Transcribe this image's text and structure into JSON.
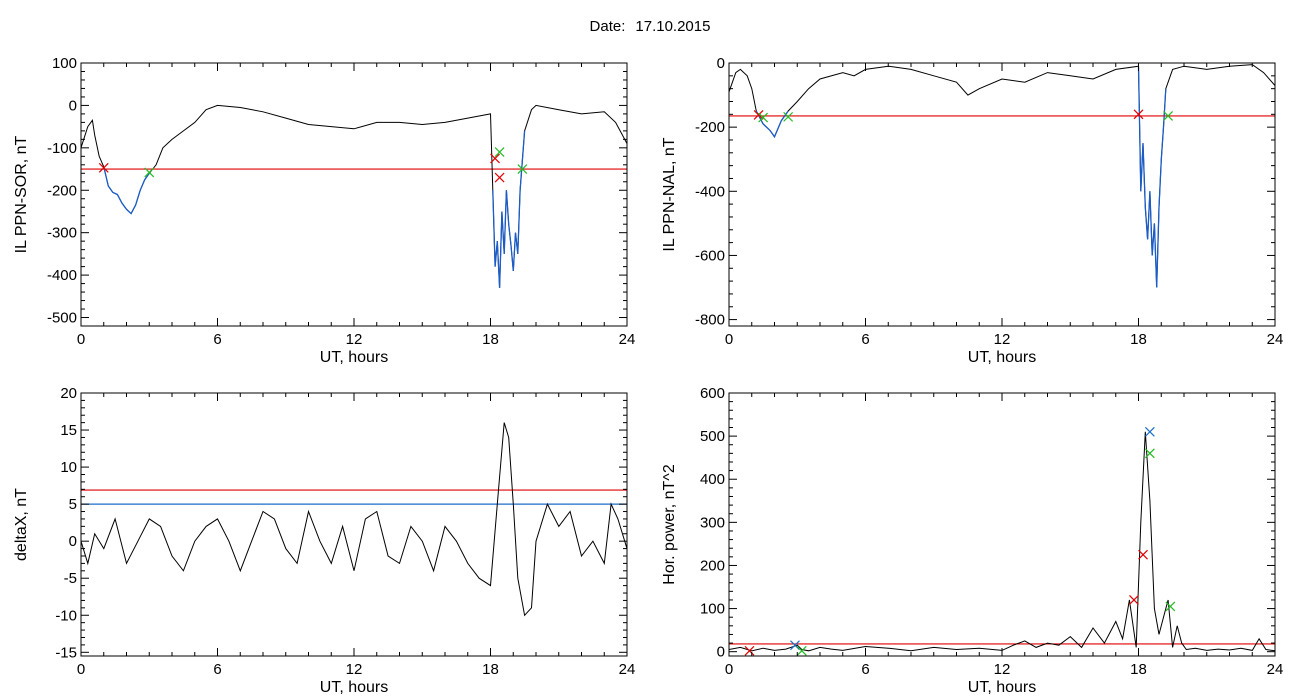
{
  "header": {
    "date_label": "Date:",
    "date_value": "17.10.2015"
  },
  "colors": {
    "trace": "#000000",
    "selected": "#1a5cc8",
    "threshold": "#e00000",
    "threshold2": "#1a6fc8",
    "marker_red": "#e00000",
    "marker_green": "#22bb22",
    "marker_blue": "#1a6fc8"
  },
  "chart_data": [
    {
      "type": "line",
      "xlabel": "UT, hours",
      "ylabel": "IL PPN-SOR, nT",
      "xlim": [
        0,
        24
      ],
      "ylim": [
        -520,
        100
      ],
      "xticks": [
        0,
        6,
        12,
        18,
        24
      ],
      "yticks": [
        -500,
        -400,
        -300,
        -200,
        -100,
        0,
        100
      ],
      "series": [
        {
          "x": [
            0,
            0.3,
            0.5,
            0.6,
            0.8,
            1.0,
            1.2,
            1.4,
            1.6,
            1.8,
            2.0,
            2.2,
            2.4,
            2.6,
            2.8,
            3.0,
            3.3,
            3.6,
            4.0,
            4.5,
            5.0,
            5.5,
            6.0,
            7.0,
            8.0,
            9.0,
            10.0,
            11.0,
            12.0,
            13.0,
            14.0,
            15.0,
            16.0,
            17.0,
            17.5,
            18.0,
            18.1,
            18.2,
            18.3,
            18.4,
            18.5,
            18.6,
            18.7,
            18.8,
            18.9,
            19.0,
            19.1,
            19.2,
            19.3,
            19.5,
            19.8,
            20.0,
            21.0,
            22.0,
            23.0,
            23.5,
            24.0
          ],
          "y": [
            -100,
            -50,
            -35,
            -70,
            -120,
            -145,
            -190,
            -205,
            -210,
            -230,
            -245,
            -255,
            -235,
            -200,
            -175,
            -160,
            -140,
            -100,
            -80,
            -60,
            -40,
            -10,
            0,
            -5,
            -15,
            -30,
            -45,
            -50,
            -55,
            -40,
            -40,
            -45,
            -40,
            -30,
            -25,
            -20,
            -200,
            -380,
            -320,
            -430,
            -250,
            -350,
            -200,
            -280,
            -330,
            -390,
            -300,
            -350,
            -200,
            -60,
            -10,
            0,
            -10,
            -20,
            -15,
            -40,
            -90
          ]
        }
      ],
      "thresholds": [
        {
          "y": -150,
          "color": "#e00000"
        }
      ],
      "highlights": [
        [
          0.9,
          3.2
        ],
        [
          18.1,
          19.7
        ]
      ],
      "markers": [
        {
          "x": 1.0,
          "y": -147,
          "color": "#e00000"
        },
        {
          "x": 3.0,
          "y": -158,
          "color": "#22bb22"
        },
        {
          "x": 18.2,
          "y": -125,
          "color": "#e00000"
        },
        {
          "x": 18.4,
          "y": -110,
          "color": "#22bb22"
        },
        {
          "x": 18.4,
          "y": -170,
          "color": "#e00000"
        },
        {
          "x": 19.4,
          "y": -150,
          "color": "#22bb22"
        }
      ]
    },
    {
      "type": "line",
      "xlabel": "UT, hours",
      "ylabel": "IL PPN-NAL, nT",
      "xlim": [
        0,
        24
      ],
      "ylim": [
        -820,
        0
      ],
      "xticks": [
        0,
        6,
        12,
        18,
        24
      ],
      "yticks": [
        -800,
        -600,
        -400,
        -200,
        0
      ],
      "series": [
        {
          "x": [
            0,
            0.3,
            0.5,
            0.8,
            1.0,
            1.2,
            1.5,
            1.8,
            2.0,
            2.3,
            2.6,
            3.0,
            3.5,
            4.0,
            5.0,
            5.5,
            6.0,
            7.0,
            8.0,
            9.0,
            10.0,
            10.5,
            11.0,
            12.0,
            13.0,
            14.0,
            15.0,
            16.0,
            17.0,
            18.0,
            18.1,
            18.2,
            18.3,
            18.4,
            18.5,
            18.6,
            18.7,
            18.8,
            18.9,
            19.0,
            19.1,
            19.2,
            19.5,
            20.0,
            21.0,
            22.0,
            23.0,
            23.5,
            24.0
          ],
          "y": [
            -90,
            -30,
            -20,
            -40,
            -80,
            -150,
            -190,
            -210,
            -230,
            -180,
            -150,
            -120,
            -80,
            -50,
            -30,
            -40,
            -20,
            -10,
            -20,
            -40,
            -60,
            -100,
            -80,
            -50,
            -60,
            -30,
            -40,
            -50,
            -20,
            -10,
            -400,
            -250,
            -450,
            -550,
            -400,
            -600,
            -500,
            -700,
            -450,
            -300,
            -200,
            -80,
            -20,
            -10,
            -20,
            -10,
            -5,
            -30,
            -70
          ]
        }
      ],
      "thresholds": [
        {
          "y": -165,
          "color": "#e00000"
        }
      ],
      "highlights": [
        [
          1.2,
          2.6
        ],
        [
          18.0,
          19.3
        ]
      ],
      "markers": [
        {
          "x": 1.3,
          "y": -162,
          "color": "#e00000"
        },
        {
          "x": 1.5,
          "y": -170,
          "color": "#22bb22"
        },
        {
          "x": 2.6,
          "y": -168,
          "color": "#22bb22"
        },
        {
          "x": 18.0,
          "y": -160,
          "color": "#e00000"
        },
        {
          "x": 19.3,
          "y": -165,
          "color": "#22bb22"
        }
      ]
    },
    {
      "type": "line",
      "xlabel": "UT, hours",
      "ylabel": "deltaX, nT",
      "xlim": [
        0,
        24
      ],
      "ylim": [
        -15.5,
        20
      ],
      "xticks": [
        0,
        6,
        12,
        18,
        24
      ],
      "yticks": [
        -15,
        -10,
        -5,
        0,
        5,
        10,
        15,
        20
      ],
      "series": [
        {
          "x": [
            0,
            0.3,
            0.6,
            1.0,
            1.5,
            2.0,
            2.5,
            3.0,
            3.5,
            4.0,
            4.5,
            5.0,
            5.5,
            6.0,
            6.5,
            7.0,
            7.5,
            8.0,
            8.5,
            9.0,
            9.5,
            10.0,
            10.5,
            11.0,
            11.5,
            12.0,
            12.5,
            13.0,
            13.5,
            14.0,
            14.5,
            15.0,
            15.5,
            16.0,
            16.5,
            17.0,
            17.5,
            18.0,
            18.3,
            18.6,
            18.8,
            19.0,
            19.2,
            19.5,
            19.8,
            20.0,
            20.5,
            21.0,
            21.5,
            22.0,
            22.5,
            23.0,
            23.3,
            23.6,
            24.0
          ],
          "y": [
            0,
            -3,
            1,
            -1,
            3,
            -3,
            0,
            3,
            2,
            -2,
            -4,
            0,
            2,
            3,
            0,
            -4,
            0,
            4,
            3,
            -1,
            -3,
            4,
            0,
            -3,
            2,
            -4,
            3,
            4,
            -2,
            -3,
            2,
            0,
            -4,
            2,
            0,
            -3,
            -5,
            -6,
            5,
            16,
            14,
            5,
            -5,
            -10,
            -9,
            0,
            5,
            2,
            4,
            -2,
            0,
            -3,
            5,
            3,
            -1
          ]
        }
      ],
      "thresholds": [
        {
          "y": 6.9,
          "color": "#e00000"
        },
        {
          "y": 5.0,
          "color": "#1a6fc8"
        }
      ],
      "highlights": [],
      "markers": []
    },
    {
      "type": "line",
      "xlabel": "UT, hours",
      "ylabel": "Hor. power, nT^2",
      "xlim": [
        0,
        24
      ],
      "ylim": [
        -10,
        600
      ],
      "xticks": [
        0,
        6,
        12,
        18,
        24
      ],
      "yticks": [
        0,
        100,
        200,
        300,
        400,
        500,
        600
      ],
      "series": [
        {
          "x": [
            0,
            0.5,
            1.0,
            1.5,
            2.0,
            2.5,
            3.0,
            3.2,
            3.5,
            4.0,
            4.5,
            5.0,
            6.0,
            7.0,
            8.0,
            9.0,
            10.0,
            11.0,
            12.0,
            12.5,
            13.0,
            13.5,
            14.0,
            14.5,
            15.0,
            15.5,
            16.0,
            16.5,
            17.0,
            17.3,
            17.6,
            17.9,
            18.1,
            18.3,
            18.5,
            18.7,
            18.9,
            19.1,
            19.3,
            19.5,
            19.7,
            19.9,
            20.1,
            20.5,
            21.0,
            21.5,
            22.0,
            22.5,
            23.0,
            23.3,
            23.6,
            24.0
          ],
          "y": [
            5,
            10,
            2,
            8,
            3,
            6,
            15,
            5,
            2,
            10,
            6,
            3,
            12,
            8,
            2,
            10,
            5,
            8,
            3,
            15,
            25,
            10,
            20,
            15,
            35,
            10,
            55,
            20,
            70,
            30,
            120,
            10,
            300,
            510,
            350,
            100,
            40,
            80,
            120,
            10,
            60,
            20,
            5,
            8,
            3,
            6,
            4,
            8,
            3,
            30,
            5,
            2
          ]
        }
      ],
      "thresholds": [
        {
          "y": 18,
          "color": "#e00000"
        }
      ],
      "highlights": [],
      "markers": [
        {
          "x": 0.9,
          "y": 2,
          "color": "#e00000"
        },
        {
          "x": 2.9,
          "y": 15,
          "color": "#1a6fc8"
        },
        {
          "x": 3.2,
          "y": 2,
          "color": "#22bb22"
        },
        {
          "x": 17.8,
          "y": 120,
          "color": "#e00000"
        },
        {
          "x": 18.2,
          "y": 225,
          "color": "#e00000"
        },
        {
          "x": 18.5,
          "y": 510,
          "color": "#1a6fc8"
        },
        {
          "x": 18.5,
          "y": 460,
          "color": "#22bb22"
        },
        {
          "x": 19.4,
          "y": 105,
          "color": "#22bb22"
        }
      ]
    }
  ]
}
